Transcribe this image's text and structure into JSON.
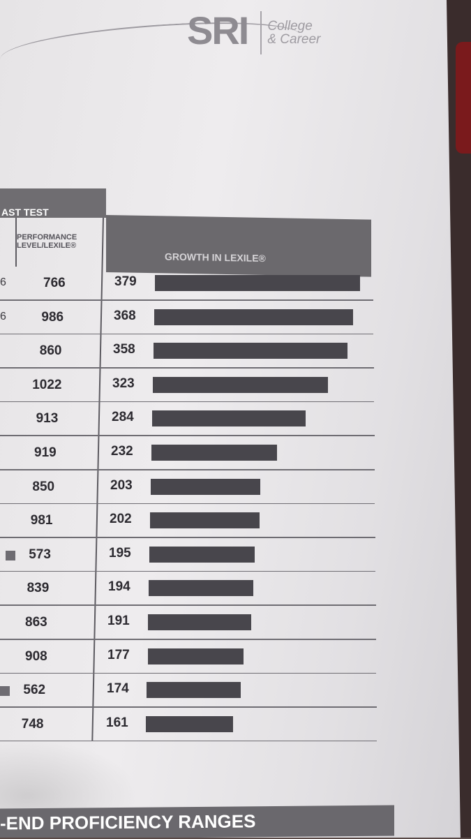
{
  "logo": {
    "brand": "SRI",
    "line1": "College",
    "line2": "& Career"
  },
  "table": {
    "last_test_header": "AST TEST",
    "performance_header_line1": "PERFORMANCE",
    "performance_header_line2": "LEVEL/LEXILE®",
    "growth_header": "GROWTH IN LEXILE®",
    "rows": [
      {
        "cut": "6",
        "mark": false,
        "performance": "766",
        "growth": 379
      },
      {
        "cut": "6",
        "mark": false,
        "performance": "986",
        "growth": 368
      },
      {
        "cut": "",
        "mark": false,
        "performance": "860",
        "growth": 358
      },
      {
        "cut": "",
        "mark": false,
        "performance": "1022",
        "growth": 323
      },
      {
        "cut": "",
        "mark": false,
        "performance": "913",
        "growth": 284
      },
      {
        "cut": "",
        "mark": false,
        "performance": "919",
        "growth": 232
      },
      {
        "cut": "",
        "mark": false,
        "performance": "850",
        "growth": 203
      },
      {
        "cut": "",
        "mark": false,
        "performance": "981",
        "growth": 202
      },
      {
        "cut": "",
        "mark": true,
        "performance": "573",
        "growth": 195
      },
      {
        "cut": "",
        "mark": false,
        "performance": "839",
        "growth": 194
      },
      {
        "cut": "",
        "mark": false,
        "performance": "863",
        "growth": 191
      },
      {
        "cut": "",
        "mark": false,
        "performance": "908",
        "growth": 177
      },
      {
        "cut": "",
        "mark": true,
        "performance": "562",
        "growth": 174
      },
      {
        "cut": "",
        "mark": false,
        "performance": "748",
        "growth": 161
      }
    ]
  },
  "footer": {
    "section_title": "-END PROFICIENCY RANGES"
  },
  "colors": {
    "bar": "#48464c",
    "header": "#6b696d",
    "paper": "#e8e6e9"
  }
}
